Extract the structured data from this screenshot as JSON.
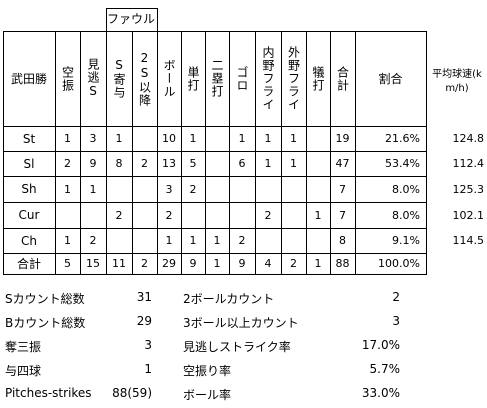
{
  "foul_group_label": "ファウル",
  "pitcher_name": "武田勝",
  "columns": [
    "空振",
    "見逃S",
    "S寄与",
    "2S以降",
    "ボール",
    "単打",
    "二塁打",
    "ゴロ",
    "内野フライ",
    "外野フライ",
    "犠打",
    "合計",
    "割合"
  ],
  "speed_header": "平均球速(km/h)",
  "rows": [
    {
      "pitch": "St",
      "cells": [
        "1",
        "3",
        "1",
        "",
        "10",
        "1",
        "",
        "1",
        "1",
        "1",
        "",
        "19",
        "21.6%"
      ],
      "speed": "124.8"
    },
    {
      "pitch": "Sl",
      "cells": [
        "2",
        "9",
        "8",
        "2",
        "13",
        "5",
        "",
        "6",
        "1",
        "1",
        "",
        "47",
        "53.4%"
      ],
      "speed": "112.4"
    },
    {
      "pitch": "Sh",
      "cells": [
        "1",
        "1",
        "",
        "",
        "3",
        "2",
        "",
        "",
        "",
        "",
        "",
        "7",
        "8.0%"
      ],
      "speed": "125.3"
    },
    {
      "pitch": "Cur",
      "cells": [
        "",
        "",
        "2",
        "",
        "2",
        "",
        "",
        "",
        "2",
        "",
        "1",
        "7",
        "8.0%"
      ],
      "speed": "102.1"
    },
    {
      "pitch": "Ch",
      "cells": [
        "1",
        "2",
        "",
        "",
        "1",
        "1",
        "1",
        "2",
        "",
        "",
        "",
        "8",
        "9.1%"
      ],
      "speed": "114.5"
    },
    {
      "pitch": "合計",
      "cells": [
        "5",
        "15",
        "11",
        "2",
        "29",
        "9",
        "1",
        "9",
        "4",
        "2",
        "1",
        "88",
        "100.0%"
      ],
      "speed": ""
    }
  ],
  "stats_left": [
    {
      "label": "Sカウント総数",
      "value": "31"
    },
    {
      "label": "Bカウント総数",
      "value": "29"
    },
    {
      "label": "奪三振",
      "value": "3"
    },
    {
      "label": "与四球",
      "value": "1"
    },
    {
      "label": "Pitches-strikes",
      "value": "88(59)"
    }
  ],
  "stats_right": [
    {
      "label": "2ボールカウント",
      "value": "2"
    },
    {
      "label": "3ボール以上カウント",
      "value": "3"
    },
    {
      "label": "見逃しストライク率",
      "value": "17.0%"
    },
    {
      "label": "空振り率",
      "value": "5.7%"
    },
    {
      "label": "ボール率",
      "value": "33.0%"
    }
  ]
}
